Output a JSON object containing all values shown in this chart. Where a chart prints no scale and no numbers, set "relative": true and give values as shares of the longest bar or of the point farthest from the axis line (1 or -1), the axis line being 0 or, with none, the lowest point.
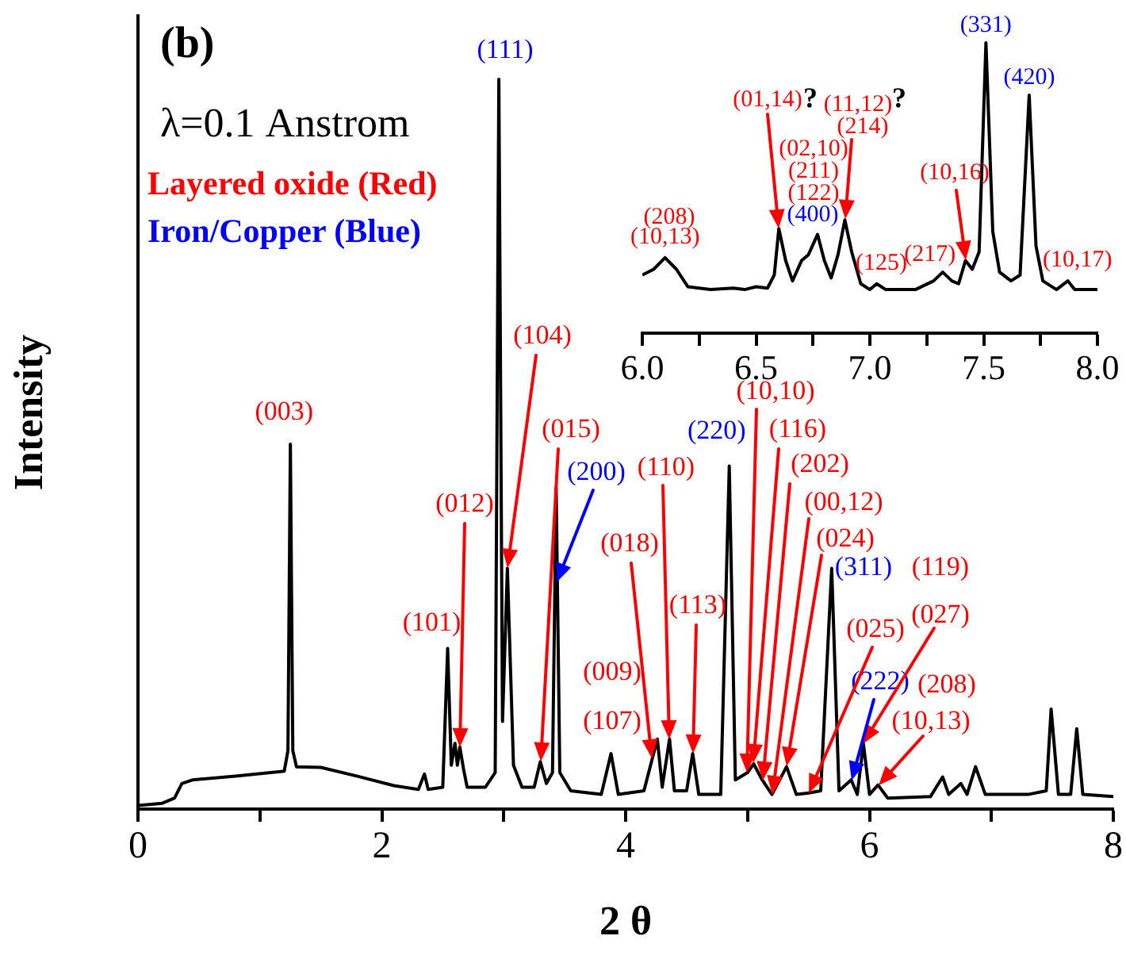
{
  "chart_data": [
    {
      "type": "line",
      "relative": true,
      "xlabel": "2 θ",
      "ylabel": "Intensity",
      "tick_labels": "x",
      "color": "#000000",
      "xlim": [
        0,
        8
      ],
      "xticks": [
        0,
        {
          "value": 1,
          "label": null
        },
        2,
        {
          "value": 3,
          "label": null
        },
        4,
        {
          "value": 5,
          "label": null
        },
        6,
        {
          "value": 7,
          "label": null
        },
        8
      ],
      "x": [
        0,
        0.2,
        0.3,
        0.36,
        0.45,
        0.8,
        1.2,
        1.23,
        1.25,
        1.27,
        1.3,
        1.5,
        1.8,
        2.1,
        2.3,
        2.35,
        2.38,
        2.5,
        2.54,
        2.57,
        2.6,
        2.62,
        2.64,
        2.67,
        2.7,
        2.85,
        2.93,
        2.96,
        2.99,
        3.03,
        3.08,
        3.15,
        3.25,
        3.3,
        3.35,
        3.4,
        3.43,
        3.46,
        3.55,
        3.8,
        3.88,
        3.94,
        4.15,
        4.22,
        4.26,
        4.3,
        4.36,
        4.4,
        4.5,
        4.55,
        4.6,
        4.78,
        4.85,
        4.9,
        5.0,
        5.05,
        5.12,
        5.2,
        5.32,
        5.4,
        5.5,
        5.6,
        5.69,
        5.75,
        5.85,
        5.9,
        5.95,
        6.0,
        6.07,
        6.15,
        6.5,
        6.6,
        6.65,
        6.75,
        6.8,
        6.87,
        6.95,
        7.3,
        7.45,
        7.49,
        7.55,
        7.65,
        7.7,
        7.75,
        8.0
      ],
      "values": [
        0.005,
        0.008,
        0.015,
        0.035,
        0.04,
        0.045,
        0.052,
        0.08,
        0.5,
        0.08,
        0.058,
        0.057,
        0.045,
        0.032,
        0.027,
        0.048,
        0.027,
        0.03,
        0.22,
        0.06,
        0.09,
        0.06,
        0.085,
        0.055,
        0.03,
        0.03,
        0.05,
        1,
        0.12,
        0.33,
        0.06,
        0.03,
        0.03,
        0.065,
        0.035,
        0.05,
        0.44,
        0.05,
        0.025,
        0.02,
        0.076,
        0.02,
        0.025,
        0.07,
        0.096,
        0.03,
        0.096,
        0.025,
        0.025,
        0.076,
        0.02,
        0.02,
        0.47,
        0.04,
        0.05,
        0.062,
        0.04,
        0.02,
        0.058,
        0.02,
        0.022,
        0.025,
        0.33,
        0.025,
        0.04,
        0.02,
        0.09,
        0.02,
        0.033,
        0.015,
        0.017,
        0.044,
        0.02,
        0.035,
        0.02,
        0.058,
        0.02,
        0.02,
        0.025,
        0.137,
        0.02,
        0.02,
        0.11,
        0.02,
        0.017
      ],
      "annotations": [
        "(b)",
        "λ=0.1 Anstrom",
        "Layered oxide (Red)",
        "Iron/Copper (Blue)",
        {
          "text": "(003)",
          "x": 1.25,
          "y": 0.5
        },
        {
          "text": "(101)",
          "x": 2.54,
          "y": 0.22
        },
        "(012)",
        {
          "text": "(111)",
          "x": 2.96,
          "y": 1
        },
        "(104)",
        "(015)",
        "(200)",
        "(018)",
        "(110)",
        "(009)",
        "(107)",
        "(113)",
        {
          "text": "(220)",
          "x": 4.85,
          "y": 0.47
        },
        "(10,10)",
        "(116)",
        "(202)",
        "(00,12)",
        "(024)",
        {
          "text": "(311)",
          "x": 5.69,
          "y": 0.33
        },
        "(119)",
        "(025)",
        "(027)",
        "(222)",
        "(208)",
        "(10,13)"
      ]
    },
    {
      "type": "line",
      "relative": true,
      "tick_labels": "x",
      "color": "#000000",
      "xlim": [
        6,
        8
      ],
      "xticks": [
        {
          "value": 6,
          "label": "6.0"
        },
        {
          "value": 6.25,
          "label": null
        },
        {
          "value": 6.5,
          "label": "6.5"
        },
        {
          "value": 6.75,
          "label": null
        },
        {
          "value": 7,
          "label": "7.0"
        },
        {
          "value": 7.25,
          "label": null
        },
        {
          "value": 7.5,
          "label": "7.5"
        },
        {
          "value": 7.75,
          "label": null
        },
        {
          "value": 8,
          "label": "8.0"
        }
      ],
      "x": [
        6.0,
        6.05,
        6.1,
        6.15,
        6.2,
        6.3,
        6.4,
        6.45,
        6.5,
        6.55,
        6.58,
        6.6,
        6.63,
        6.66,
        6.7,
        6.73,
        6.77,
        6.8,
        6.83,
        6.86,
        6.89,
        6.92,
        6.96,
        7.0,
        7.03,
        7.07,
        7.2,
        7.28,
        7.32,
        7.36,
        7.39,
        7.42,
        7.45,
        7.48,
        7.51,
        7.54,
        7.57,
        7.62,
        7.66,
        7.7,
        7.73,
        7.76,
        7.82,
        7.87,
        7.9,
        8.0
      ],
      "values": [
        0.2,
        0.22,
        0.26,
        0.22,
        0.16,
        0.15,
        0.155,
        0.15,
        0.16,
        0.155,
        0.2,
        0.36,
        0.25,
        0.18,
        0.25,
        0.27,
        0.34,
        0.25,
        0.19,
        0.27,
        0.39,
        0.28,
        0.17,
        0.15,
        0.17,
        0.15,
        0.15,
        0.18,
        0.21,
        0.18,
        0.17,
        0.25,
        0.22,
        0.28,
        1,
        0.35,
        0.21,
        0.18,
        0.2,
        0.82,
        0.3,
        0.18,
        0.15,
        0.18,
        0.15,
        0.15
      ],
      "annotations": [
        "(208)",
        {
          "text": "(10,13)",
          "x": 6.1,
          "y": 0.26
        },
        "(01,14)",
        "?",
        "(02,10)",
        "(211)",
        "(122)",
        "(11,12)",
        "?",
        "(214)",
        {
          "text": "(400)",
          "x": 6.77,
          "y": 0.34
        },
        {
          "text": "(125)",
          "x": 7.03,
          "y": 0.17
        },
        {
          "text": "(217)",
          "x": 7.32,
          "y": 0.21
        },
        "(10,16)",
        {
          "text": "(331)",
          "x": 7.51,
          "y": 1
        },
        {
          "text": "(420)",
          "x": 7.7,
          "y": 0.82
        },
        {
          "text": "(10,17)",
          "x": 7.87,
          "y": 0.18
        }
      ]
    }
  ]
}
